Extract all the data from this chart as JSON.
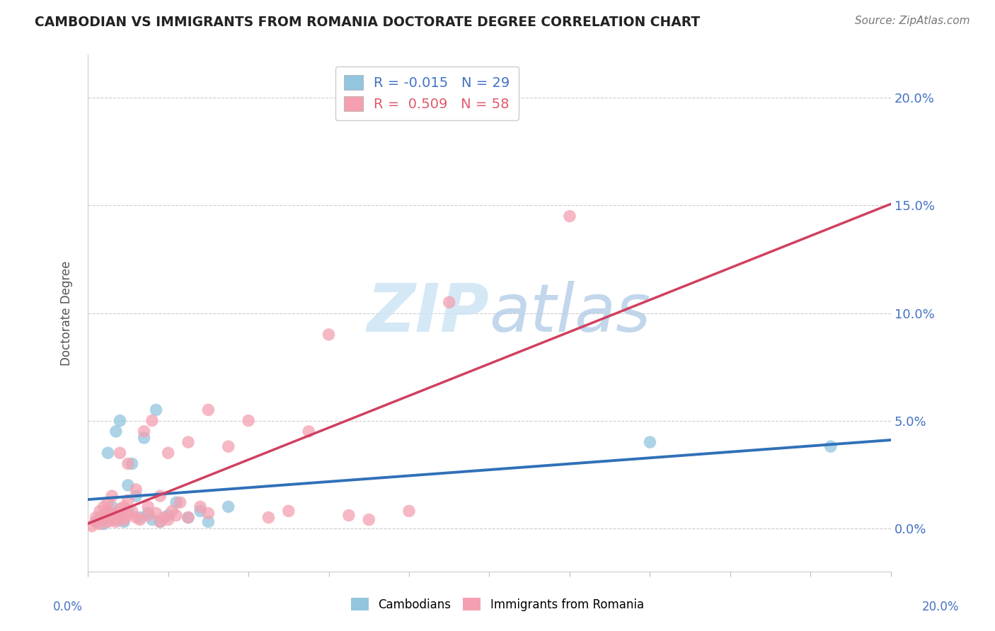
{
  "title": "CAMBODIAN VS IMMIGRANTS FROM ROMANIA DOCTORATE DEGREE CORRELATION CHART",
  "source": "Source: ZipAtlas.com",
  "ylabel": "Doctorate Degree",
  "ytick_labels": [
    "0.0%",
    "5.0%",
    "10.0%",
    "15.0%",
    "20.0%"
  ],
  "ytick_values": [
    0.0,
    5.0,
    10.0,
    15.0,
    20.0
  ],
  "xrange": [
    0.0,
    20.0
  ],
  "yrange": [
    -2.0,
    22.0
  ],
  "legend_r_cambodian": "-0.015",
  "legend_n_cambodian": "29",
  "legend_r_romania": "0.509",
  "legend_n_romania": "58",
  "blue_scatter_color": "#92c5de",
  "pink_scatter_color": "#f4a0b0",
  "blue_line_color": "#3070b8",
  "pink_line_color": "#d04060",
  "dashed_line_color": "#bbbbbb",
  "watermark_color": "#cde4f5",
  "label_cambodian": "Cambodians",
  "label_romania": "Immigrants from Romania",
  "cambodian_x": [
    0.2,
    0.3,
    0.4,
    0.5,
    0.5,
    0.6,
    0.7,
    0.7,
    0.8,
    0.8,
    0.9,
    1.0,
    1.0,
    1.1,
    1.2,
    1.3,
    1.4,
    1.5,
    1.6,
    1.7,
    1.8,
    2.0,
    2.2,
    2.5,
    2.8,
    3.0,
    3.5,
    14.0,
    18.5
  ],
  "cambodian_y": [
    0.3,
    0.5,
    0.2,
    0.8,
    3.5,
    1.0,
    4.5,
    0.4,
    5.0,
    0.6,
    0.3,
    2.0,
    0.8,
    3.0,
    1.5,
    0.5,
    4.2,
    0.7,
    0.4,
    5.5,
    0.3,
    0.6,
    1.2,
    0.5,
    0.8,
    0.3,
    1.0,
    4.0,
    3.8
  ],
  "romania_x": [
    0.1,
    0.2,
    0.2,
    0.3,
    0.3,
    0.4,
    0.4,
    0.4,
    0.5,
    0.5,
    0.5,
    0.5,
    0.6,
    0.6,
    0.6,
    0.7,
    0.7,
    0.8,
    0.8,
    0.8,
    0.9,
    0.9,
    1.0,
    1.0,
    1.0,
    1.1,
    1.2,
    1.2,
    1.3,
    1.4,
    1.5,
    1.5,
    1.6,
    1.7,
    1.8,
    1.8,
    1.9,
    2.0,
    2.0,
    2.1,
    2.2,
    2.3,
    2.5,
    2.5,
    2.8,
    3.0,
    3.0,
    3.5,
    4.0,
    4.5,
    5.0,
    5.5,
    6.0,
    6.5,
    7.0,
    8.0,
    9.0,
    12.0
  ],
  "romania_y": [
    0.1,
    0.3,
    0.5,
    0.2,
    0.8,
    0.4,
    0.6,
    1.0,
    0.3,
    0.5,
    0.8,
    1.2,
    0.4,
    0.7,
    1.5,
    0.3,
    0.6,
    0.5,
    0.9,
    3.5,
    0.4,
    1.0,
    0.6,
    1.3,
    3.0,
    0.8,
    0.5,
    1.8,
    0.4,
    4.5,
    0.6,
    1.0,
    5.0,
    0.7,
    0.3,
    1.5,
    0.5,
    0.4,
    3.5,
    0.8,
    0.6,
    1.2,
    0.5,
    4.0,
    1.0,
    0.7,
    5.5,
    3.8,
    5.0,
    0.5,
    0.8,
    4.5,
    9.0,
    0.6,
    0.4,
    0.8,
    10.5,
    14.5
  ]
}
